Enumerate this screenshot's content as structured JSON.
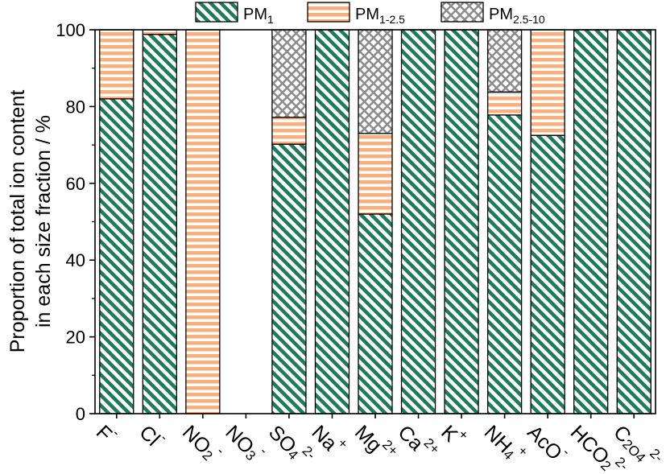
{
  "chart_data": {
    "type": "bar",
    "stacked": true,
    "ylabel_line1": "Proportion of total ion content",
    "ylabel_line2": "in each size fraction / %",
    "ylim": [
      0,
      100
    ],
    "yticks": [
      "0",
      "20",
      "40",
      "60",
      "80",
      "100"
    ],
    "categories": [
      {
        "base": "F",
        "sup": "-",
        "sub": ""
      },
      {
        "base": "Cl",
        "sup": "-",
        "sub": ""
      },
      {
        "base": "NO",
        "sup": "-",
        "sub": "2"
      },
      {
        "base": "NO",
        "sup": "-",
        "sub": "3"
      },
      {
        "base": "SO",
        "sup": "2-",
        "sub": "4"
      },
      {
        "base": "Na",
        "sup": "+",
        "sub": ""
      },
      {
        "base": "Mg",
        "sup": "2+",
        "sub": ""
      },
      {
        "base": "Ca",
        "sup": "2+",
        "sub": ""
      },
      {
        "base": "K",
        "sup": "+",
        "sub": ""
      },
      {
        "base": "NH",
        "sup": "+",
        "sub": "4"
      },
      {
        "base": "AcO",
        "sup": "-",
        "sub": ""
      },
      {
        "base": "HCO",
        "sup": "2-",
        "sub": "2"
      },
      {
        "base": "C",
        "sup": "2-",
        "sub": "2O4"
      }
    ],
    "series": [
      {
        "name": "PM",
        "name_sub": "1",
        "color": "#1f7a5c",
        "pattern": "diagonal",
        "values": [
          82,
          98.8,
          0,
          0,
          70.2,
          100,
          52,
          100,
          100,
          77.8,
          72.5,
          100,
          100
        ]
      },
      {
        "name": "PM",
        "name_sub": "1-2.5",
        "color": "#f4b183",
        "pattern": "horizontal",
        "values": [
          18,
          1.2,
          100,
          0,
          7,
          0,
          21,
          0,
          0,
          6,
          27.5,
          0,
          0
        ]
      },
      {
        "name": "PM",
        "name_sub": "2.5-10",
        "color": "#8c8c8c",
        "pattern": "crosshatch",
        "values": [
          0,
          0,
          0,
          0,
          22.8,
          0,
          27,
          0,
          0,
          16.2,
          0,
          0,
          0
        ]
      }
    ],
    "legend_position": "top",
    "grid": false
  }
}
